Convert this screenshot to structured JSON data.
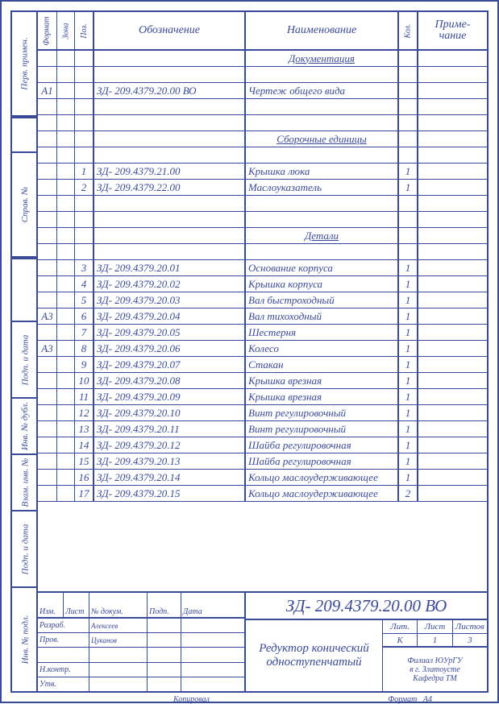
{
  "headers": {
    "format": "Формат",
    "zone": "Зона",
    "pos": "Поз.",
    "designation": "Обозначение",
    "name": "Наименование",
    "qty": "Кол.",
    "note": "Приме-\nчание"
  },
  "sections": {
    "docs": "Документация",
    "assy": "Сборочные единицы",
    "parts": "Детали"
  },
  "rows": [
    {
      "fmt": "",
      "zone": "",
      "pos": "",
      "des": "",
      "name": "",
      "qty": "",
      "sec": "docs"
    },
    {
      "fmt": "",
      "zone": "",
      "pos": "",
      "des": "",
      "name": "",
      "qty": ""
    },
    {
      "fmt": "А1",
      "zone": "",
      "pos": "",
      "des": "ЗД- 209.4379.20.00 ВО",
      "name": "Чертеж общего вида",
      "qty": ""
    },
    {
      "fmt": "",
      "zone": "",
      "pos": "",
      "des": "",
      "name": "",
      "qty": ""
    },
    {
      "fmt": "",
      "zone": "",
      "pos": "",
      "des": "",
      "name": "",
      "qty": ""
    },
    {
      "fmt": "",
      "zone": "",
      "pos": "",
      "des": "",
      "name": "",
      "qty": "",
      "sec": "assy"
    },
    {
      "fmt": "",
      "zone": "",
      "pos": "",
      "des": "",
      "name": "",
      "qty": ""
    },
    {
      "fmt": "",
      "zone": "",
      "pos": "1",
      "des": "ЗД- 209.4379.21.00",
      "name": "Крышка люка",
      "qty": "1"
    },
    {
      "fmt": "",
      "zone": "",
      "pos": "2",
      "des": "ЗД- 209.4379.22.00",
      "name": "Маслоуказатель",
      "qty": "1"
    },
    {
      "fmt": "",
      "zone": "",
      "pos": "",
      "des": "",
      "name": "",
      "qty": ""
    },
    {
      "fmt": "",
      "zone": "",
      "pos": "",
      "des": "",
      "name": "",
      "qty": ""
    },
    {
      "fmt": "",
      "zone": "",
      "pos": "",
      "des": "",
      "name": "",
      "qty": "",
      "sec": "parts"
    },
    {
      "fmt": "",
      "zone": "",
      "pos": "",
      "des": "",
      "name": "",
      "qty": ""
    },
    {
      "fmt": "",
      "zone": "",
      "pos": "3",
      "des": "ЗД- 209.4379.20.01",
      "name": "Основание корпуса",
      "qty": "1"
    },
    {
      "fmt": "",
      "zone": "",
      "pos": "4",
      "des": "ЗД- 209.4379.20.02",
      "name": "Крышка корпуса",
      "qty": "1"
    },
    {
      "fmt": "",
      "zone": "",
      "pos": "5",
      "des": "ЗД- 209.4379.20.03",
      "name": "Вал быстроходный",
      "qty": "1"
    },
    {
      "fmt": "А3",
      "zone": "",
      "pos": "6",
      "des": "ЗД- 209.4379.20.04",
      "name": "Вал тихоходный",
      "qty": "1"
    },
    {
      "fmt": "",
      "zone": "",
      "pos": "7",
      "des": "ЗД- 209.4379.20.05",
      "name": "Шестерня",
      "qty": "1"
    },
    {
      "fmt": "А3",
      "zone": "",
      "pos": "8",
      "des": "ЗД- 209.4379.20.06",
      "name": "Колесо",
      "qty": "1"
    },
    {
      "fmt": "",
      "zone": "",
      "pos": "9",
      "des": "ЗД- 209.4379.20.07",
      "name": "Стакан",
      "qty": "1"
    },
    {
      "fmt": "",
      "zone": "",
      "pos": "10",
      "des": "ЗД- 209.4379.20.08",
      "name": "Крышка врезная",
      "qty": "1"
    },
    {
      "fmt": "",
      "zone": "",
      "pos": "11",
      "des": "ЗД- 209.4379.20.09",
      "name": "Крышка врезная",
      "qty": "1"
    },
    {
      "fmt": "",
      "zone": "",
      "pos": "12",
      "des": "ЗД- 209.4379.20.10",
      "name": "Винт регулировочный",
      "qty": "1"
    },
    {
      "fmt": "",
      "zone": "",
      "pos": "13",
      "des": "ЗД- 209.4379.20.11",
      "name": "Винт регулировочный",
      "qty": "1"
    },
    {
      "fmt": "",
      "zone": "",
      "pos": "14",
      "des": "ЗД- 209.4379.20.12",
      "name": "Шайба регулировочная",
      "qty": "1"
    },
    {
      "fmt": "",
      "zone": "",
      "pos": "15",
      "des": "ЗД- 209.4379.20.13",
      "name": "Шайба регулировочная",
      "qty": "1"
    },
    {
      "fmt": "",
      "zone": "",
      "pos": "16",
      "des": "ЗД- 209.4379.20.14",
      "name": "Кольцо маслоудерживающее",
      "qty": "1"
    },
    {
      "fmt": "",
      "zone": "",
      "pos": "17",
      "des": "ЗД- 209.4379.20.15",
      "name": "Кольцо маслоудерживающее",
      "qty": "2"
    }
  ],
  "side_labels": {
    "perv": "Перв. примен.",
    "sprav": "Справ. №",
    "podp1": "Подп. и дата",
    "inv_dubl": "Инв. № дубл.",
    "vzam": "Взам. инв. №",
    "podp2": "Подп. и дата",
    "inv_podl": "Инв. № подл."
  },
  "title_block": {
    "hdr": {
      "izm": "Изм.",
      "list": "Лист",
      "ndoc": "№ докум.",
      "podp": "Подп.",
      "data": "Дата"
    },
    "roles": {
      "razrab": "Разраб.",
      "prov": "Пров.",
      "blank": "",
      "nkontr": "Н.контр.",
      "utv": "Утв."
    },
    "persons": {
      "razrab": "Алексеев",
      "prov": "Цуканов"
    },
    "number": "ЗД- 209.4379.20.00 ВО",
    "title": "Редуктор конический одноступенчатый",
    "meta": {
      "lit": "Лит.",
      "list": "Лист",
      "listov": "Листов",
      "k": "К",
      "n1": "1",
      "n3": "3"
    },
    "org": "Филиал ЮУрГУ\nв г. Златоусте\nКафедра ТМ"
  },
  "footer": {
    "kopiroval": "Копировал",
    "format": "Формат",
    "a4": "А4"
  },
  "colors": {
    "line": "#3a4a9a",
    "bg": "#ffffff"
  }
}
